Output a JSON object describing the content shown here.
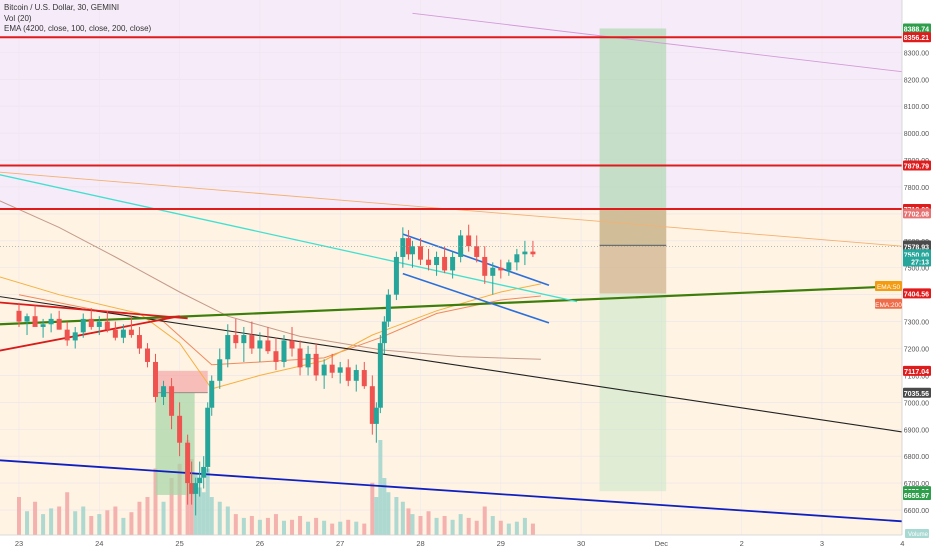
{
  "chart_data": {
    "type": "candlestick",
    "header": {
      "symbol_line": "Bitcoin / U.S. Dollar, 30, GEMINI",
      "volume_line": "Vol (20)",
      "ema_line": "EMA (4200, close, 100, close, 200, close)"
    },
    "x_ticks": [
      {
        "label": "23",
        "day": 23
      },
      {
        "label": "24",
        "day": 24
      },
      {
        "label": "25",
        "day": 25
      },
      {
        "label": "26",
        "day": 26
      },
      {
        "label": "27",
        "day": 27
      },
      {
        "label": "28",
        "day": 28
      },
      {
        "label": "29",
        "day": 29
      },
      {
        "label": "30",
        "day": 30
      },
      {
        "label": "Dec",
        "day": 31
      },
      {
        "label": "2",
        "day": 32
      },
      {
        "label": "3",
        "day": 33
      },
      {
        "label": "4",
        "day": 34
      }
    ],
    "y_ticks": [
      6600,
      6700,
      6800,
      6900,
      7000,
      7100,
      7200,
      7300,
      7400,
      7500,
      7600,
      7700,
      7800,
      7900,
      8000,
      8100,
      8200,
      8300
    ],
    "ylim": [
      6540,
      8420
    ],
    "price_labels": [
      {
        "text": "8388.74",
        "value": 8388.74,
        "color": "#2e9e4a"
      },
      {
        "text": "8356.21",
        "value": 8356.21,
        "color": "#e01b1b"
      },
      {
        "text": "7879.79",
        "value": 7879.79,
        "color": "#e01b1b"
      },
      {
        "text": "7718.00",
        "value": 7718.0,
        "color": "#e01b1b"
      },
      {
        "text": "7702.08",
        "value": 7702.08,
        "color": "#e57373"
      },
      {
        "text": "7583.15",
        "value": 7583.15,
        "color": "#4a4a4a"
      },
      {
        "text": "7578.93",
        "value": 7578.93,
        "color": "#4a4a4a"
      },
      {
        "text": "7550.00",
        "value": 7550.0,
        "color": "#26a69a"
      },
      {
        "text": "27:13",
        "value": 7523,
        "color": "#26a69a"
      },
      {
        "text": "7404.56",
        "value": 7404.56,
        "color": "#e01b1b"
      },
      {
        "text": "7117.04",
        "value": 7117.04,
        "color": "#e01b1b"
      },
      {
        "text": "7035.56",
        "value": 7035.56,
        "color": "#4a4a4a"
      },
      {
        "text": "6670.02",
        "value": 6670.02,
        "color": "#2e9e4a"
      },
      {
        "text": "6655.97",
        "value": 6655.97,
        "color": "#2e9e4a"
      }
    ],
    "ema_badges": [
      {
        "text": "EMA:50",
        "value": 7432,
        "color": "#f39c12"
      },
      {
        "text": "EMA:200",
        "value": 7366,
        "color": "#ef6c4a"
      }
    ],
    "horizontal_levels": [
      8356.21,
      7879.79,
      7718.0
    ],
    "trend_lines": [
      {
        "name": "black",
        "color": "#222222",
        "width": 1.1,
        "p1": [
          22.6,
          7400
        ],
        "p2": [
          34.0,
          6890
        ]
      },
      {
        "name": "green",
        "color": "#3d7d0a",
        "width": 2.2,
        "p1": [
          22.6,
          7288
        ],
        "p2": [
          34.0,
          7432
        ]
      },
      {
        "name": "blue",
        "color": "#1020c0",
        "width": 1.8,
        "p1": [
          22.6,
          6788
        ],
        "p2": [
          34.0,
          6558
        ]
      },
      {
        "name": "cyan",
        "color": "#40e0d0",
        "width": 1.3,
        "p1": [
          22.6,
          7856
        ],
        "p2": [
          29.95,
          7374
        ]
      },
      {
        "name": "orange",
        "color": "#f5b070",
        "width": 0.9,
        "p1": [
          22.6,
          7859
        ],
        "p2": [
          34.0,
          7580
        ]
      },
      {
        "name": "purple",
        "color": "#d49ad9",
        "width": 0.9,
        "p1": [
          27.9,
          8445
        ],
        "p2": [
          34.0,
          8228
        ]
      },
      {
        "name": "red1",
        "color": "#d81b1b",
        "width": 1.8,
        "p1": [
          22.6,
          7183
        ],
        "p2": [
          25.0,
          7320
        ]
      },
      {
        "name": "red2",
        "color": "#d81b1b",
        "width": 1.8,
        "p1": [
          22.6,
          7375
        ],
        "p2": [
          25.1,
          7312
        ]
      },
      {
        "name": "channel-top",
        "color": "#2a6fdb",
        "width": 1.6,
        "p1": [
          27.78,
          7625
        ],
        "p2": [
          29.6,
          7435
        ]
      },
      {
        "name": "channel-bottom",
        "color": "#2a6fdb",
        "width": 1.6,
        "p1": [
          27.78,
          7478
        ],
        "p2": [
          29.6,
          7295
        ]
      }
    ],
    "ema_curves": [
      {
        "name": "EMA 4200",
        "color": "#c49a8a",
        "points": [
          [
            22.6,
            7770
          ],
          [
            23.5,
            7650
          ],
          [
            24.2,
            7540
          ],
          [
            25.0,
            7410
          ],
          [
            25.6,
            7320
          ],
          [
            26.5,
            7245
          ],
          [
            27.5,
            7195
          ],
          [
            28.5,
            7170
          ],
          [
            29.5,
            7160
          ]
        ]
      },
      {
        "name": "EMA 200",
        "color": "#f08a5d",
        "points": [
          [
            23.0,
            7400
          ],
          [
            24.0,
            7340
          ],
          [
            24.8,
            7300
          ],
          [
            25.4,
            7140
          ],
          [
            26.0,
            7150
          ],
          [
            26.8,
            7165
          ],
          [
            27.5,
            7240
          ],
          [
            28.2,
            7330
          ],
          [
            29.0,
            7380
          ],
          [
            29.5,
            7395
          ]
        ]
      },
      {
        "name": "EMA 100",
        "color": "#f5b040",
        "points": [
          [
            22.6,
            7480
          ],
          [
            23.5,
            7400
          ],
          [
            24.5,
            7330
          ],
          [
            25.0,
            7220
          ],
          [
            25.4,
            7050
          ],
          [
            26.0,
            7100
          ],
          [
            26.8,
            7155
          ],
          [
            27.4,
            7250
          ],
          [
            28.2,
            7340
          ],
          [
            29.0,
            7410
          ],
          [
            29.5,
            7440
          ]
        ]
      }
    ],
    "long_position": {
      "x1": 30.23,
      "x2": 31.06,
      "entry": 7583.15,
      "target": 8388.74,
      "stop": 7404.56,
      "bottom_zone": 6670.02,
      "top_zone": 7718.0
    },
    "small_position": {
      "x1": 24.7,
      "x2": 25.35,
      "entry": 7035.56,
      "stop": 7117.04,
      "target": 6655.97
    },
    "candles": [
      [
        23.0,
        7340,
        7370,
        7280,
        7300
      ],
      [
        23.1,
        7300,
        7330,
        7250,
        7320
      ],
      [
        23.2,
        7320,
        7360,
        7290,
        7280
      ],
      [
        23.3,
        7280,
        7310,
        7240,
        7290
      ],
      [
        23.4,
        7290,
        7330,
        7260,
        7310
      ],
      [
        23.5,
        7310,
        7340,
        7270,
        7270
      ],
      [
        23.6,
        7270,
        7300,
        7210,
        7230
      ],
      [
        23.7,
        7230,
        7280,
        7200,
        7260
      ],
      [
        23.8,
        7260,
        7330,
        7240,
        7310
      ],
      [
        23.9,
        7310,
        7350,
        7270,
        7280
      ],
      [
        24.0,
        7280,
        7320,
        7250,
        7300
      ],
      [
        24.1,
        7300,
        7340,
        7260,
        7270
      ],
      [
        24.2,
        7270,
        7300,
        7230,
        7240
      ],
      [
        24.3,
        7240,
        7290,
        7220,
        7270
      ],
      [
        24.4,
        7270,
        7320,
        7240,
        7250
      ],
      [
        24.5,
        7250,
        7280,
        7180,
        7200
      ],
      [
        24.6,
        7200,
        7220,
        7130,
        7150
      ],
      [
        24.7,
        7150,
        7180,
        7000,
        7020
      ],
      [
        24.8,
        7020,
        7080,
        6990,
        7060
      ],
      [
        24.9,
        7060,
        7090,
        6900,
        6950
      ],
      [
        25.0,
        6950,
        7000,
        6800,
        6850
      ],
      [
        25.1,
        6850,
        6880,
        6620,
        6700
      ],
      [
        25.15,
        6700,
        6780,
        6620,
        6660
      ],
      [
        25.2,
        6660,
        6720,
        6580,
        6700
      ],
      [
        25.25,
        6700,
        6780,
        6650,
        6720
      ],
      [
        25.3,
        6720,
        6800,
        6680,
        6760
      ],
      [
        25.35,
        6760,
        7000,
        6740,
        6980
      ],
      [
        25.4,
        6980,
        7100,
        6950,
        7080
      ],
      [
        25.5,
        7080,
        7200,
        7050,
        7160
      ],
      [
        25.6,
        7160,
        7290,
        7130,
        7250
      ],
      [
        25.7,
        7250,
        7310,
        7200,
        7220
      ],
      [
        25.8,
        7220,
        7280,
        7150,
        7250
      ],
      [
        25.9,
        7250,
        7300,
        7180,
        7200
      ],
      [
        26.0,
        7200,
        7260,
        7150,
        7230
      ],
      [
        26.1,
        7230,
        7280,
        7180,
        7190
      ],
      [
        26.2,
        7190,
        7240,
        7120,
        7150
      ],
      [
        26.3,
        7150,
        7250,
        7130,
        7230
      ],
      [
        26.4,
        7230,
        7280,
        7170,
        7200
      ],
      [
        26.5,
        7200,
        7230,
        7100,
        7130
      ],
      [
        26.6,
        7130,
        7210,
        7100,
        7180
      ],
      [
        26.7,
        7180,
        7220,
        7080,
        7100
      ],
      [
        26.8,
        7100,
        7160,
        7050,
        7140
      ],
      [
        26.9,
        7140,
        7180,
        7090,
        7110
      ],
      [
        27.0,
        7110,
        7150,
        7070,
        7130
      ],
      [
        27.1,
        7130,
        7160,
        7060,
        7080
      ],
      [
        27.2,
        7080,
        7140,
        7040,
        7120
      ],
      [
        27.3,
        7120,
        7150,
        7050,
        7060
      ],
      [
        27.4,
        7060,
        7100,
        6880,
        6920
      ],
      [
        27.45,
        6920,
        7000,
        6850,
        6980
      ],
      [
        27.5,
        6980,
        7250,
        6960,
        7220
      ],
      [
        27.55,
        7220,
        7320,
        7180,
        7300
      ],
      [
        27.6,
        7300,
        7420,
        7280,
        7400
      ],
      [
        27.7,
        7400,
        7560,
        7380,
        7540
      ],
      [
        27.78,
        7540,
        7650,
        7500,
        7610
      ],
      [
        27.85,
        7610,
        7640,
        7530,
        7550
      ],
      [
        27.9,
        7550,
        7600,
        7500,
        7580
      ],
      [
        28.0,
        7580,
        7610,
        7510,
        7530
      ],
      [
        28.1,
        7530,
        7570,
        7490,
        7510
      ],
      [
        28.2,
        7510,
        7560,
        7470,
        7540
      ],
      [
        28.3,
        7540,
        7580,
        7480,
        7490
      ],
      [
        28.4,
        7490,
        7560,
        7460,
        7540
      ],
      [
        28.5,
        7540,
        7640,
        7520,
        7620
      ],
      [
        28.6,
        7620,
        7660,
        7560,
        7580
      ],
      [
        28.7,
        7580,
        7620,
        7520,
        7540
      ],
      [
        28.8,
        7540,
        7580,
        7440,
        7470
      ],
      [
        28.9,
        7470,
        7520,
        7400,
        7500
      ],
      [
        29.0,
        7500,
        7530,
        7460,
        7490
      ],
      [
        29.1,
        7490,
        7530,
        7470,
        7520
      ],
      [
        29.2,
        7520,
        7570,
        7490,
        7550
      ],
      [
        29.3,
        7550,
        7600,
        7510,
        7560
      ],
      [
        29.4,
        7560,
        7600,
        7540,
        7550
      ]
    ],
    "volume": [
      [
        23.0,
        40
      ],
      [
        23.1,
        25
      ],
      [
        23.2,
        35
      ],
      [
        23.3,
        22
      ],
      [
        23.4,
        28
      ],
      [
        23.5,
        30
      ],
      [
        23.6,
        45
      ],
      [
        23.7,
        25
      ],
      [
        23.8,
        30
      ],
      [
        23.9,
        20
      ],
      [
        24.0,
        22
      ],
      [
        24.1,
        26
      ],
      [
        24.2,
        30
      ],
      [
        24.3,
        18
      ],
      [
        24.4,
        24
      ],
      [
        24.5,
        35
      ],
      [
        24.6,
        40
      ],
      [
        24.7,
        70
      ],
      [
        24.8,
        35
      ],
      [
        24.9,
        60
      ],
      [
        25.0,
        75
      ],
      [
        25.1,
        100
      ],
      [
        25.15,
        80
      ],
      [
        25.2,
        65
      ],
      [
        25.25,
        50
      ],
      [
        25.3,
        45
      ],
      [
        25.35,
        70
      ],
      [
        25.4,
        40
      ],
      [
        25.5,
        35
      ],
      [
        25.6,
        30
      ],
      [
        25.7,
        22
      ],
      [
        25.8,
        18
      ],
      [
        25.9,
        20
      ],
      [
        26.0,
        16
      ],
      [
        26.1,
        18
      ],
      [
        26.2,
        22
      ],
      [
        26.3,
        15
      ],
      [
        26.4,
        16
      ],
      [
        26.5,
        20
      ],
      [
        26.6,
        14
      ],
      [
        26.7,
        18
      ],
      [
        26.8,
        15
      ],
      [
        26.9,
        12
      ],
      [
        27.0,
        14
      ],
      [
        27.1,
        16
      ],
      [
        27.2,
        14
      ],
      [
        27.3,
        12
      ],
      [
        27.4,
        55
      ],
      [
        27.45,
        40
      ],
      [
        27.5,
        100
      ],
      [
        27.55,
        60
      ],
      [
        27.6,
        45
      ],
      [
        27.7,
        40
      ],
      [
        27.78,
        35
      ],
      [
        27.85,
        28
      ],
      [
        27.9,
        22
      ],
      [
        28.0,
        20
      ],
      [
        28.1,
        25
      ],
      [
        28.2,
        18
      ],
      [
        28.3,
        20
      ],
      [
        28.4,
        16
      ],
      [
        28.5,
        22
      ],
      [
        28.6,
        18
      ],
      [
        28.7,
        15
      ],
      [
        28.8,
        30
      ],
      [
        28.9,
        20
      ],
      [
        29.0,
        15
      ],
      [
        29.1,
        12
      ],
      [
        29.2,
        14
      ],
      [
        29.3,
        18
      ],
      [
        29.4,
        12
      ]
    ],
    "volume_max": 100,
    "volume_badge": "Volume"
  }
}
